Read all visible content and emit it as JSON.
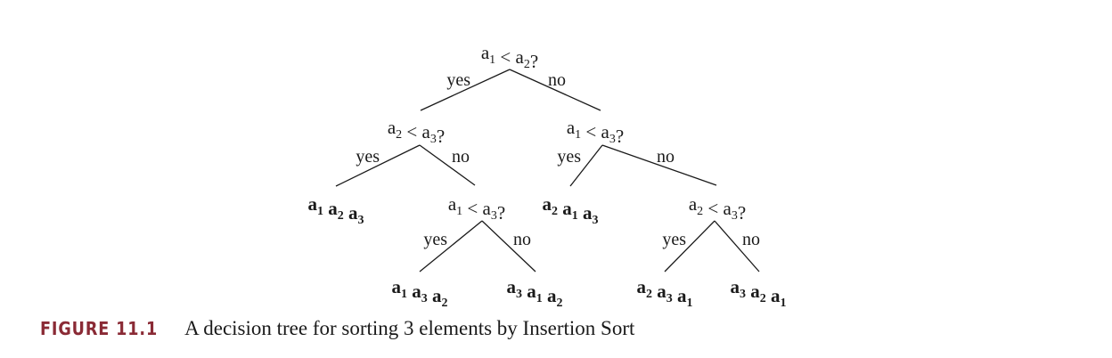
{
  "tree": {
    "nodes": [
      {
        "id": "n1",
        "var": [
          1,
          2
        ]
      },
      {
        "id": "n2",
        "var": [
          2,
          3
        ]
      },
      {
        "id": "n3",
        "var": [
          1,
          3
        ]
      },
      {
        "id": "n4",
        "var": [
          1,
          3
        ]
      },
      {
        "id": "n5",
        "var": [
          2,
          3
        ]
      }
    ],
    "leaves": [
      {
        "id": "l1",
        "order": [
          1,
          2,
          3
        ]
      },
      {
        "id": "l2",
        "order": [
          2,
          1,
          3
        ]
      },
      {
        "id": "l3",
        "order": [
          1,
          3,
          2
        ]
      },
      {
        "id": "l4",
        "order": [
          3,
          1,
          2
        ]
      },
      {
        "id": "l5",
        "order": [
          2,
          3,
          1
        ]
      },
      {
        "id": "l6",
        "order": [
          3,
          2,
          1
        ]
      }
    ],
    "question_symbol": "a",
    "comparator": "<",
    "question_mark": "?",
    "yes_label": "yes",
    "no_label": "no"
  },
  "caption": {
    "label": "FIGURE 11.1",
    "text": "A decision tree for sorting 3 elements by Insertion Sort"
  }
}
